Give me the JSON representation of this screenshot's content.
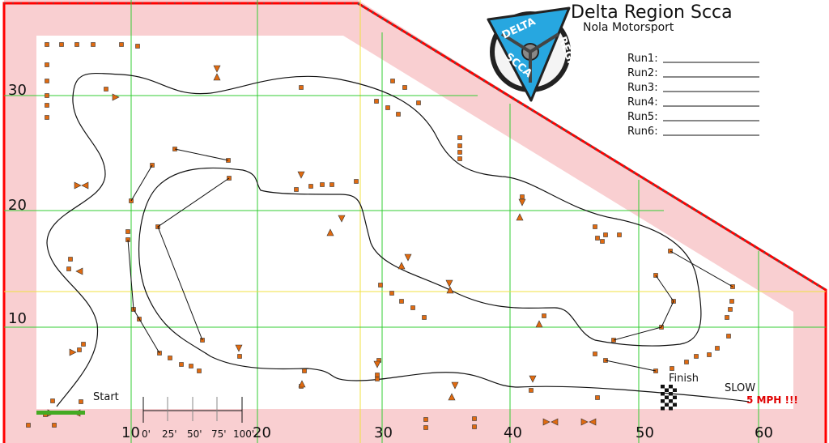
{
  "header": {
    "title": "Delta Region Scca",
    "subtitle": "Nola Motorsport"
  },
  "logo": {
    "text_top": "DELTA",
    "text_right": "REGION",
    "text_bottom": "SCCA",
    "colors": {
      "ring": "#222222",
      "field": "#27a7e0",
      "triangle": "#27a7e0"
    }
  },
  "runs": [
    "Run1:",
    "Run2:",
    "Run3:",
    "Run4:",
    "Run5:",
    "Run6:"
  ],
  "grid": {
    "x_labels": [
      "10",
      "20",
      "30",
      "40",
      "50",
      "60"
    ],
    "y_labels": [
      "30",
      "20",
      "10"
    ]
  },
  "scale_bar": {
    "labels": [
      "0'",
      "25'",
      "50'",
      "75'",
      "100'"
    ]
  },
  "annotations": {
    "start": "Start",
    "finish": "Finish",
    "slow": "SLOW",
    "mph": "5 MPH !!!"
  },
  "colors": {
    "boundary": "#ff0000",
    "pad_band": "#f9cfd1",
    "grid_major": "#33cc33",
    "grid_minor": "#f0e040",
    "cone": "#e06a10",
    "start_bar": "#44aa22"
  }
}
